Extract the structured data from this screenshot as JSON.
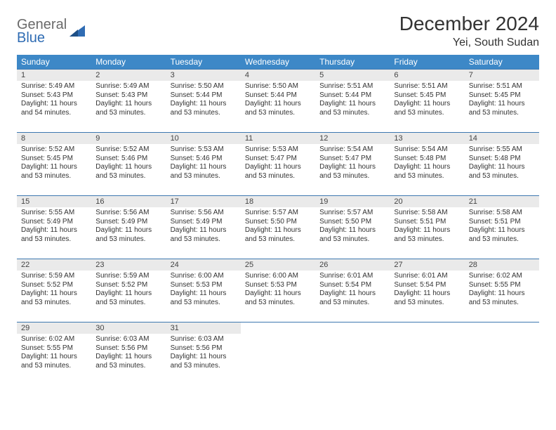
{
  "logo": {
    "top": "General",
    "bottom": "Blue"
  },
  "title": "December 2024",
  "location": "Yei, South Sudan",
  "colors": {
    "header_bg": "#3d88c7",
    "header_text": "#ffffff",
    "daynum_bg": "#eaeaea",
    "border": "#3d78b0",
    "body_text": "#333333",
    "logo_gray": "#6a6a6a",
    "logo_blue": "#2f6cb3"
  },
  "weekdays": [
    "Sunday",
    "Monday",
    "Tuesday",
    "Wednesday",
    "Thursday",
    "Friday",
    "Saturday"
  ],
  "weeks": [
    [
      {
        "n": "1",
        "sr": "Sunrise: 5:49 AM",
        "ss": "Sunset: 5:43 PM",
        "dl1": "Daylight: 11 hours",
        "dl2": "and 54 minutes."
      },
      {
        "n": "2",
        "sr": "Sunrise: 5:49 AM",
        "ss": "Sunset: 5:43 PM",
        "dl1": "Daylight: 11 hours",
        "dl2": "and 53 minutes."
      },
      {
        "n": "3",
        "sr": "Sunrise: 5:50 AM",
        "ss": "Sunset: 5:44 PM",
        "dl1": "Daylight: 11 hours",
        "dl2": "and 53 minutes."
      },
      {
        "n": "4",
        "sr": "Sunrise: 5:50 AM",
        "ss": "Sunset: 5:44 PM",
        "dl1": "Daylight: 11 hours",
        "dl2": "and 53 minutes."
      },
      {
        "n": "5",
        "sr": "Sunrise: 5:51 AM",
        "ss": "Sunset: 5:44 PM",
        "dl1": "Daylight: 11 hours",
        "dl2": "and 53 minutes."
      },
      {
        "n": "6",
        "sr": "Sunrise: 5:51 AM",
        "ss": "Sunset: 5:45 PM",
        "dl1": "Daylight: 11 hours",
        "dl2": "and 53 minutes."
      },
      {
        "n": "7",
        "sr": "Sunrise: 5:51 AM",
        "ss": "Sunset: 5:45 PM",
        "dl1": "Daylight: 11 hours",
        "dl2": "and 53 minutes."
      }
    ],
    [
      {
        "n": "8",
        "sr": "Sunrise: 5:52 AM",
        "ss": "Sunset: 5:45 PM",
        "dl1": "Daylight: 11 hours",
        "dl2": "and 53 minutes."
      },
      {
        "n": "9",
        "sr": "Sunrise: 5:52 AM",
        "ss": "Sunset: 5:46 PM",
        "dl1": "Daylight: 11 hours",
        "dl2": "and 53 minutes."
      },
      {
        "n": "10",
        "sr": "Sunrise: 5:53 AM",
        "ss": "Sunset: 5:46 PM",
        "dl1": "Daylight: 11 hours",
        "dl2": "and 53 minutes."
      },
      {
        "n": "11",
        "sr": "Sunrise: 5:53 AM",
        "ss": "Sunset: 5:47 PM",
        "dl1": "Daylight: 11 hours",
        "dl2": "and 53 minutes."
      },
      {
        "n": "12",
        "sr": "Sunrise: 5:54 AM",
        "ss": "Sunset: 5:47 PM",
        "dl1": "Daylight: 11 hours",
        "dl2": "and 53 minutes."
      },
      {
        "n": "13",
        "sr": "Sunrise: 5:54 AM",
        "ss": "Sunset: 5:48 PM",
        "dl1": "Daylight: 11 hours",
        "dl2": "and 53 minutes."
      },
      {
        "n": "14",
        "sr": "Sunrise: 5:55 AM",
        "ss": "Sunset: 5:48 PM",
        "dl1": "Daylight: 11 hours",
        "dl2": "and 53 minutes."
      }
    ],
    [
      {
        "n": "15",
        "sr": "Sunrise: 5:55 AM",
        "ss": "Sunset: 5:49 PM",
        "dl1": "Daylight: 11 hours",
        "dl2": "and 53 minutes."
      },
      {
        "n": "16",
        "sr": "Sunrise: 5:56 AM",
        "ss": "Sunset: 5:49 PM",
        "dl1": "Daylight: 11 hours",
        "dl2": "and 53 minutes."
      },
      {
        "n": "17",
        "sr": "Sunrise: 5:56 AM",
        "ss": "Sunset: 5:49 PM",
        "dl1": "Daylight: 11 hours",
        "dl2": "and 53 minutes."
      },
      {
        "n": "18",
        "sr": "Sunrise: 5:57 AM",
        "ss": "Sunset: 5:50 PM",
        "dl1": "Daylight: 11 hours",
        "dl2": "and 53 minutes."
      },
      {
        "n": "19",
        "sr": "Sunrise: 5:57 AM",
        "ss": "Sunset: 5:50 PM",
        "dl1": "Daylight: 11 hours",
        "dl2": "and 53 minutes."
      },
      {
        "n": "20",
        "sr": "Sunrise: 5:58 AM",
        "ss": "Sunset: 5:51 PM",
        "dl1": "Daylight: 11 hours",
        "dl2": "and 53 minutes."
      },
      {
        "n": "21",
        "sr": "Sunrise: 5:58 AM",
        "ss": "Sunset: 5:51 PM",
        "dl1": "Daylight: 11 hours",
        "dl2": "and 53 minutes."
      }
    ],
    [
      {
        "n": "22",
        "sr": "Sunrise: 5:59 AM",
        "ss": "Sunset: 5:52 PM",
        "dl1": "Daylight: 11 hours",
        "dl2": "and 53 minutes."
      },
      {
        "n": "23",
        "sr": "Sunrise: 5:59 AM",
        "ss": "Sunset: 5:52 PM",
        "dl1": "Daylight: 11 hours",
        "dl2": "and 53 minutes."
      },
      {
        "n": "24",
        "sr": "Sunrise: 6:00 AM",
        "ss": "Sunset: 5:53 PM",
        "dl1": "Daylight: 11 hours",
        "dl2": "and 53 minutes."
      },
      {
        "n": "25",
        "sr": "Sunrise: 6:00 AM",
        "ss": "Sunset: 5:53 PM",
        "dl1": "Daylight: 11 hours",
        "dl2": "and 53 minutes."
      },
      {
        "n": "26",
        "sr": "Sunrise: 6:01 AM",
        "ss": "Sunset: 5:54 PM",
        "dl1": "Daylight: 11 hours",
        "dl2": "and 53 minutes."
      },
      {
        "n": "27",
        "sr": "Sunrise: 6:01 AM",
        "ss": "Sunset: 5:54 PM",
        "dl1": "Daylight: 11 hours",
        "dl2": "and 53 minutes."
      },
      {
        "n": "28",
        "sr": "Sunrise: 6:02 AM",
        "ss": "Sunset: 5:55 PM",
        "dl1": "Daylight: 11 hours",
        "dl2": "and 53 minutes."
      }
    ],
    [
      {
        "n": "29",
        "sr": "Sunrise: 6:02 AM",
        "ss": "Sunset: 5:55 PM",
        "dl1": "Daylight: 11 hours",
        "dl2": "and 53 minutes."
      },
      {
        "n": "30",
        "sr": "Sunrise: 6:03 AM",
        "ss": "Sunset: 5:56 PM",
        "dl1": "Daylight: 11 hours",
        "dl2": "and 53 minutes."
      },
      {
        "n": "31",
        "sr": "Sunrise: 6:03 AM",
        "ss": "Sunset: 5:56 PM",
        "dl1": "Daylight: 11 hours",
        "dl2": "and 53 minutes."
      },
      {
        "empty": true
      },
      {
        "empty": true
      },
      {
        "empty": true
      },
      {
        "empty": true
      }
    ]
  ]
}
